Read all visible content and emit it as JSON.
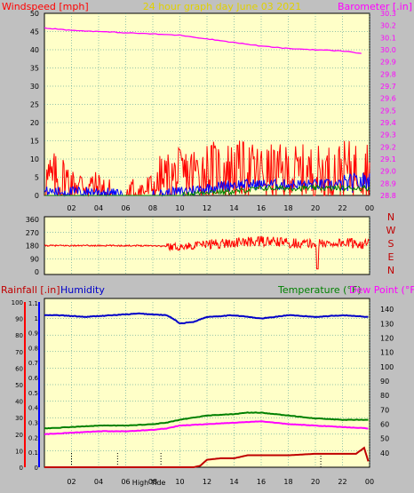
{
  "header": {
    "left_title": "Windspeed [mph]",
    "center_title": "24 hour graph day   June 03 2021",
    "right_title": "Barometer [.in]"
  },
  "colors": {
    "background": "#c0c0c0",
    "plot_bg": "#ffffc8",
    "grid": "#2e8b8b",
    "wind": "#ff0000",
    "gust": "#0000ff",
    "avg": "#008000",
    "barometer": "#ff00ff",
    "humidity": "#0000c8",
    "temperature": "#008000",
    "dewpoint": "#ff00ff",
    "rainfall": "#c00000"
  },
  "chart_data": [
    {
      "type": "line",
      "title": "24 hour graph day   June 03 2021",
      "ylabel": "Windspeed [mph]",
      "y2label": "Barometer [.in]",
      "x_ticks": [
        "02",
        "04",
        "06",
        "08",
        "10",
        "12",
        "14",
        "16",
        "18",
        "20",
        "22",
        "00"
      ],
      "ylim": [
        0,
        50
      ],
      "y_ticks": [
        0,
        5,
        10,
        15,
        20,
        25,
        30,
        35,
        40,
        45,
        50
      ],
      "y2lim": [
        28.8,
        30.3
      ],
      "y2_ticks": [
        "28.8",
        "28.9",
        "29.0",
        "29.1",
        "29.2",
        "29.3",
        "29.4",
        "29.5",
        "29.6",
        "29.7",
        "29.8",
        "29.9",
        "30.0",
        "30.1",
        "30.2",
        "30.3"
      ],
      "grid": true,
      "series": [
        {
          "key": "barometer",
          "axis": "right",
          "x": [
            0,
            2,
            4,
            6,
            8,
            10,
            12,
            14,
            16,
            18,
            20,
            22,
            23.5
          ],
          "values": [
            30.18,
            30.16,
            30.15,
            30.14,
            30.13,
            30.12,
            30.09,
            30.06,
            30.03,
            30.01,
            30.0,
            29.99,
            29.97
          ]
        },
        {
          "key": "wind",
          "axis": "left",
          "x": [
            0,
            1,
            2,
            3,
            4,
            5,
            6,
            7,
            8,
            9,
            10,
            11,
            12,
            13,
            14,
            15,
            16,
            17,
            18,
            19,
            20,
            21,
            22,
            23,
            24
          ],
          "values": [
            4,
            4,
            3,
            3,
            2,
            0,
            0,
            1,
            2,
            4,
            5,
            6,
            7,
            7,
            7,
            7,
            6,
            6,
            6,
            6,
            6,
            6,
            7,
            7,
            8
          ]
        },
        {
          "key": "gust",
          "axis": "left",
          "x": [
            0,
            2,
            4,
            6,
            8,
            10,
            12,
            14,
            16,
            18,
            20,
            22,
            24
          ],
          "values": [
            1,
            1,
            1,
            0,
            0,
            1,
            2,
            3,
            3,
            3,
            3,
            3,
            4
          ]
        },
        {
          "key": "avg",
          "axis": "left",
          "x": [
            0,
            4,
            8,
            10,
            12,
            14,
            16,
            18,
            20,
            22,
            24
          ],
          "values": [
            0,
            0,
            0,
            0,
            1,
            1,
            2,
            2,
            2,
            2,
            2
          ]
        }
      ]
    },
    {
      "type": "line",
      "ylabel": "Wind direction",
      "x_ticks": [
        "02",
        "04",
        "06",
        "08",
        "10",
        "12",
        "14",
        "16",
        "18",
        "20",
        "22",
        "00"
      ],
      "ylim": [
        0,
        360
      ],
      "y_ticks": [
        0,
        90,
        180,
        270,
        360
      ],
      "compass": [
        "N",
        "W",
        "S",
        "E",
        "N"
      ],
      "grid": true,
      "series": [
        {
          "key": "direction",
          "x": [
            0,
            2,
            4,
            6,
            8,
            10,
            12,
            14,
            16,
            18,
            20,
            22,
            24
          ],
          "values": [
            180,
            180,
            180,
            180,
            180,
            170,
            190,
            200,
            210,
            200,
            190,
            200,
            190
          ]
        }
      ]
    },
    {
      "type": "line",
      "ylabel": "Rainfall [.in]",
      "ylabel2": "Humidity",
      "y2label": "Temperature (°F)",
      "y3label": "Dew Point (°F)",
      "x_ticks": [
        "02",
        "04",
        "06",
        "08",
        "10",
        "12",
        "14",
        "16",
        "18",
        "20",
        "22",
        "00"
      ],
      "ylim": [
        0,
        100
      ],
      "y_ticks": [
        0,
        10,
        20,
        30,
        40,
        50,
        60,
        70,
        80,
        90,
        100
      ],
      "rain_ticks": [
        "0",
        "0.1",
        "0.2",
        "0.3",
        "0.4",
        "0.5",
        "0.6",
        "0.7",
        "0.8",
        "0.9",
        "1",
        "1.1"
      ],
      "y2lim": [
        30,
        145
      ],
      "y2_ticks": [
        40,
        50,
        60,
        70,
        80,
        90,
        100,
        110,
        120,
        130,
        140
      ],
      "markers": [
        "High",
        "Tide"
      ],
      "grid": true,
      "series": [
        {
          "key": "humidity",
          "x": [
            0,
            1,
            3,
            5,
            7,
            9,
            9.5,
            10,
            11,
            12,
            14,
            15,
            16,
            18,
            20,
            22,
            24
          ],
          "values": [
            92,
            92,
            91,
            92,
            93,
            92,
            90,
            87,
            88,
            91,
            92,
            91,
            90,
            92,
            91,
            92,
            91
          ]
        },
        {
          "key": "temperature",
          "x": [
            0,
            2,
            4,
            6,
            8,
            9,
            10,
            12,
            14,
            15,
            16,
            18,
            20,
            22,
            24
          ],
          "values": [
            57,
            58,
            59,
            59,
            60,
            61,
            63,
            66,
            67,
            68,
            68,
            66,
            64,
            63,
            63
          ]
        },
        {
          "key": "dewpoint",
          "x": [
            0,
            2,
            4,
            6,
            8,
            9,
            10,
            12,
            14,
            16,
            18,
            20,
            22,
            24
          ],
          "values": [
            53,
            54,
            55,
            55,
            56,
            57,
            59,
            60,
            61,
            62,
            60,
            59,
            58,
            57
          ]
        },
        {
          "key": "rainfall",
          "x": [
            0,
            11,
            11.5,
            12,
            13,
            14,
            15,
            16,
            18,
            20,
            21,
            22,
            23,
            23.6,
            24
          ],
          "values": [
            0,
            0,
            0.01,
            0.05,
            0.06,
            0.06,
            0.08,
            0.08,
            0.08,
            0.09,
            0.09,
            0.09,
            0.09,
            0.13,
            0.01
          ]
        }
      ]
    }
  ]
}
